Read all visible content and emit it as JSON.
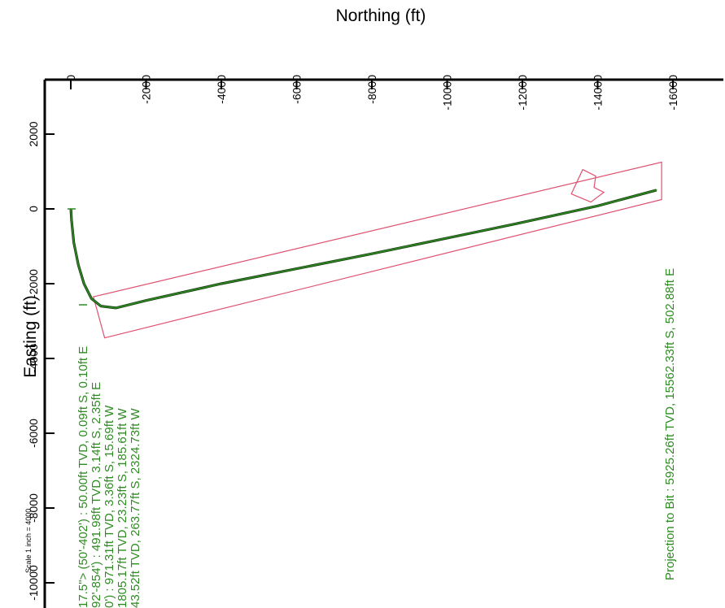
{
  "chart_data": {
    "type": "line",
    "title": "",
    "xlabel": "Northing (ft)",
    "ylabel": "Easting (ft)",
    "x_ticks": [
      "0",
      "-2000",
      "-4000",
      "-6000",
      "-8000",
      "-10000",
      "-12000",
      "-14000",
      "-16000"
    ],
    "y_ticks": [
      "2000",
      "0",
      "-2000",
      "-4000",
      "-6000",
      "-8000",
      "-10000"
    ],
    "xlim": [
      0,
      -16000
    ],
    "ylim": [
      2000,
      -10000
    ],
    "scale_note": "Scale 1 inch = 4000",
    "series": [
      {
        "type": "line",
        "color": "#2e8b22",
        "x": [
          -3,
          -20,
          -80,
          -200,
          -350,
          -550,
          -800,
          -1200,
          -2000,
          -4000,
          -6000,
          -8000,
          -10000,
          -12000,
          -14000,
          -15562
        ],
        "y": [
          0,
          -300,
          -900,
          -1500,
          -2000,
          -2400,
          -2600,
          -2650,
          -2450,
          -2000,
          -1600,
          -1200,
          -780,
          -360,
          80,
          503
        ]
      }
    ],
    "target_box": {
      "color": "#e05070",
      "corners": [
        [
          -600,
          -2350
        ],
        [
          -15700,
          1250
        ],
        [
          -15700,
          250
        ],
        [
          -900,
          -3450
        ]
      ]
    },
    "annotations": [
      "17.5\"> (50'-402') : 50.00ft TVD, 0.09ft S, 0.10ft E",
      "92'-854') : 491.98ft TVD, 3.14ft S, 2.35ft E",
      "0') : 971.31ft TVD, 3.36ft S, 15.69ft W",
      "1805.17ft TVD, 23.23ft S, 185.61ft W",
      "43.52ft TVD, 263.77ft S, 2324.73ft W",
      "Projection to Bit : 5925.26ft TVD, 15562.33ft S, 502.88ft E"
    ],
    "annotation_color": "#2e8b22",
    "axis_color": "#000000"
  }
}
